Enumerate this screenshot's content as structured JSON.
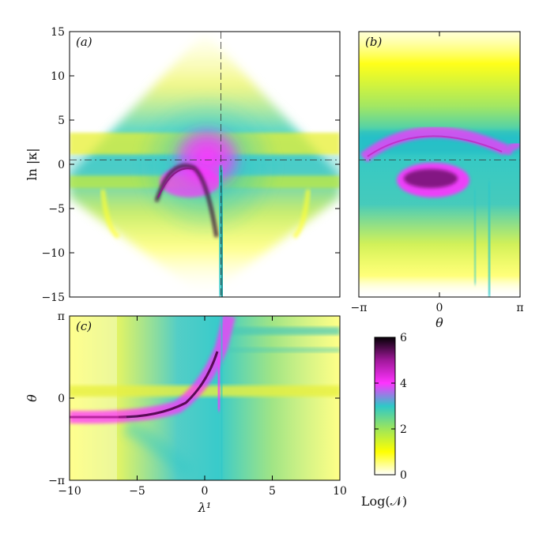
{
  "chart_data": [
    {
      "type": "heatmap",
      "panel_label": "(a)",
      "xlabel": "",
      "ylabel": "ln |κ|",
      "xlim": [
        -10,
        10
      ],
      "ylim": [
        -15,
        15
      ],
      "x_ticks": [],
      "y_ticks": [
        15,
        10,
        5,
        0,
        -5,
        -10,
        -15
      ],
      "y_tick_labels": [
        "15",
        "10",
        "5",
        "0",
        "−5",
        "−10",
        "−15"
      ],
      "guide_vertical_x": 1.2,
      "guide_horizontal_y": 0.5
    },
    {
      "type": "heatmap",
      "panel_label": "(b)",
      "xlabel": "θ",
      "ylabel": "",
      "xlim": [
        -3.14159,
        3.14159
      ],
      "ylim": [
        -15,
        15
      ],
      "x_ticks": [
        -3.14159,
        0,
        3.14159
      ],
      "x_tick_labels": [
        "−π",
        "0",
        "π"
      ],
      "y_ticks": [],
      "guide_horizontal_y": 0.5
    },
    {
      "type": "heatmap",
      "panel_label": "(c)",
      "xlabel": "λ¹",
      "ylabel": "θ",
      "xlim": [
        -10,
        10
      ],
      "ylim": [
        -3.14159,
        3.14159
      ],
      "x_ticks": [
        -10,
        -5,
        0,
        5,
        10
      ],
      "x_tick_labels": [
        "−10",
        "−5",
        "0",
        "5",
        "10"
      ],
      "y_ticks": [
        3.14159,
        0,
        -3.14159
      ],
      "y_tick_labels": [
        "π",
        "0",
        "−π"
      ]
    }
  ],
  "colorbar": {
    "label": "Log(𝒩)",
    "ticks": [
      6,
      4,
      2,
      0
    ],
    "tick_labels": [
      "6",
      "4",
      "2",
      "0"
    ],
    "range": [
      0,
      6
    ],
    "stops": [
      {
        "value": 0,
        "color": "#ffffff"
      },
      {
        "value": 1,
        "color": "#ffff00"
      },
      {
        "value": 2,
        "color": "#9ee65a"
      },
      {
        "value": 3,
        "color": "#2ec8c8"
      },
      {
        "value": 4,
        "color": "#ff33ff"
      },
      {
        "value": 5,
        "color": "#a0189a"
      },
      {
        "value": 6,
        "color": "#050005"
      }
    ]
  }
}
